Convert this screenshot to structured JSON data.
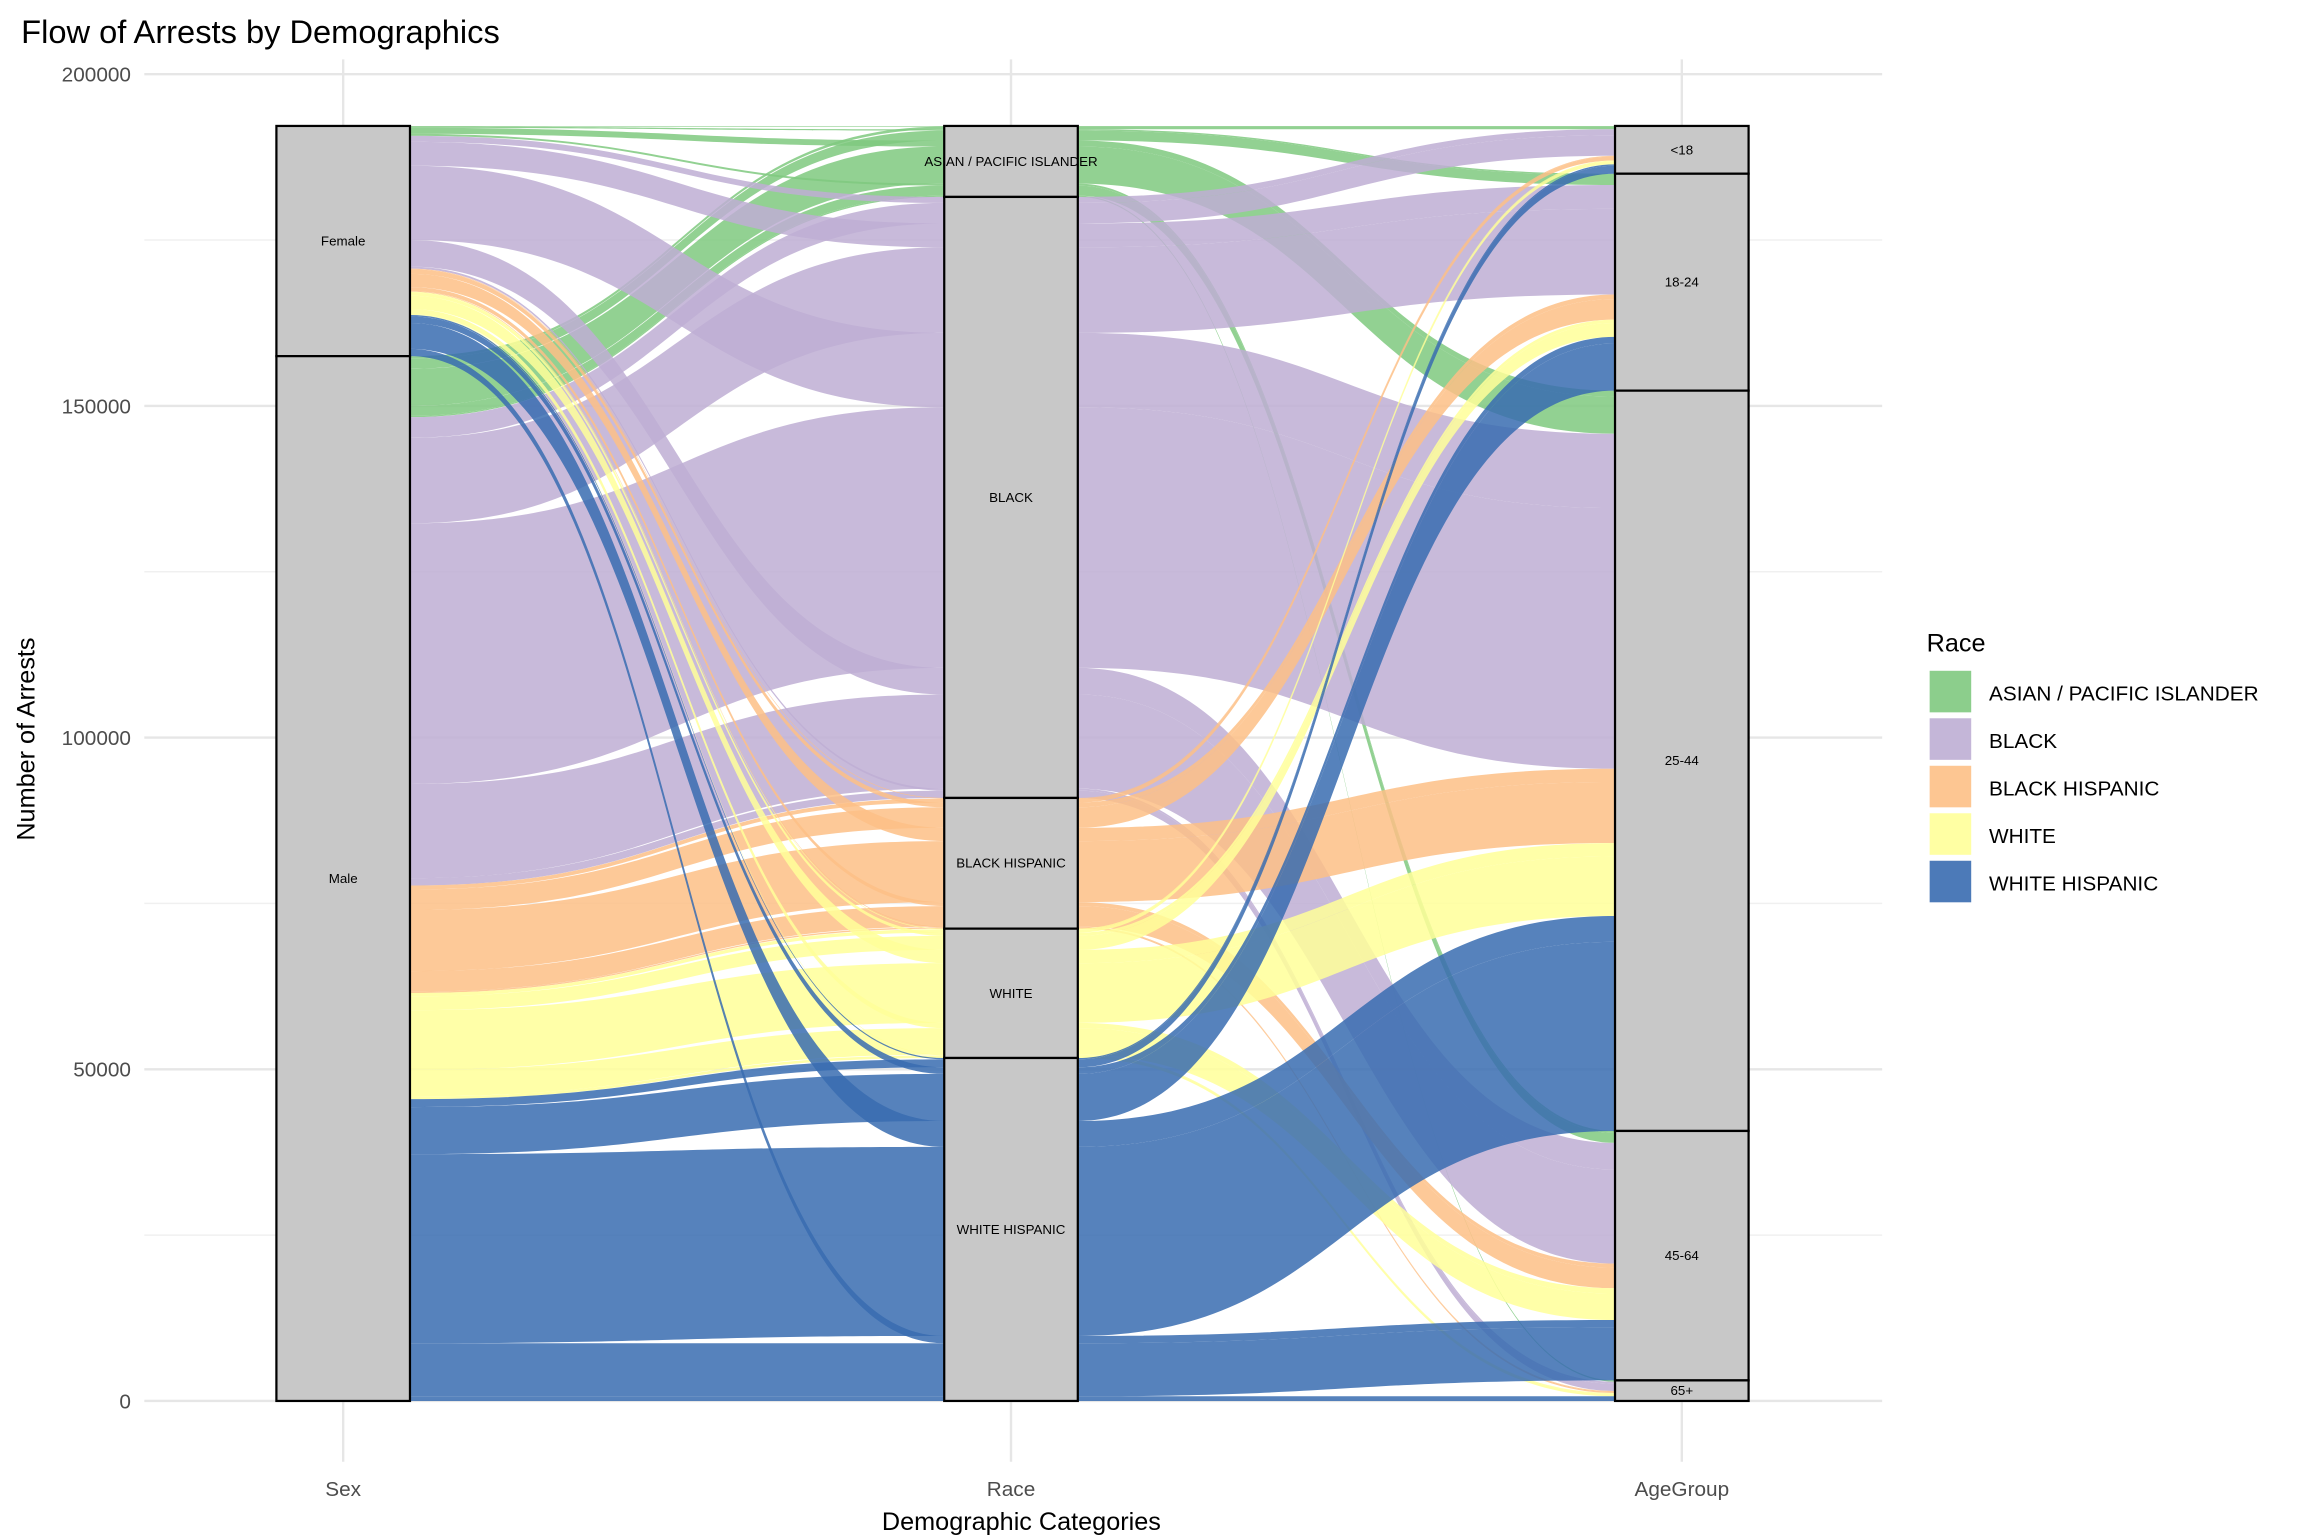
{
  "chart_data": {
    "type": "alluvial",
    "title": "Flow of Arrests by Demographics",
    "xlabel": "Demographic Categories",
    "ylabel": "Number of Arrests",
    "ylim": [
      0,
      200000
    ],
    "yticks": [
      0,
      50000,
      100000,
      150000,
      200000
    ],
    "grid": true,
    "axes": [
      "Sex",
      "Race",
      "AgeGroup"
    ],
    "strata": {
      "Sex": [
        "Female",
        "Male"
      ],
      "Race": [
        "ASIAN / PACIFIC ISLANDER",
        "BLACK",
        "BLACK HISPANIC",
        "WHITE",
        "WHITE HISPANIC"
      ],
      "AgeGroup": [
        "<18",
        "18-24",
        "25-44",
        "45-64",
        "65+"
      ]
    },
    "legend": {
      "title": "Race",
      "placement": "right",
      "entries": [
        "ASIAN / PACIFIC ISLANDER",
        "BLACK",
        "BLACK HISPANIC",
        "WHITE",
        "WHITE HISPANIC"
      ]
    },
    "colors": {
      "ASIAN / PACIFIC ISLANDER": "#7fc97f",
      "BLACK": "#beaed4",
      "BLACK HISPANIC": "#fdc086",
      "WHITE": "#ffff99",
      "WHITE HISPANIC": "#386cb0"
    },
    "flows": [
      [
        "Female",
        "ASIAN / PACIFIC ISLANDER",
        "<18",
        100
      ],
      [
        "Female",
        "ASIAN / PACIFIC ISLANDER",
        "18-24",
        200
      ],
      [
        "Female",
        "ASIAN / PACIFIC ISLANDER",
        "25-44",
        900
      ],
      [
        "Female",
        "ASIAN / PACIFIC ISLANDER",
        "45-64",
        300
      ],
      [
        "Female",
        "ASIAN / PACIFIC ISLANDER",
        "65+",
        0
      ],
      [
        "Male",
        "ASIAN / PACIFIC ISLANDER",
        "<18",
        400
      ],
      [
        "Male",
        "ASIAN / PACIFIC ISLANDER",
        "18-24",
        1500
      ],
      [
        "Male",
        "ASIAN / PACIFIC ISLANDER",
        "25-44",
        5600
      ],
      [
        "Male",
        "ASIAN / PACIFIC ISLANDER",
        "45-64",
        1500
      ],
      [
        "Male",
        "ASIAN / PACIFIC ISLANDER",
        "65+",
        200
      ],
      [
        "Female",
        "BLACK",
        "<18",
        900
      ],
      [
        "Female",
        "BLACK",
        "18-24",
        3600
      ],
      [
        "Female",
        "BLACK",
        "25-44",
        11200
      ],
      [
        "Female",
        "BLACK",
        "45-64",
        4000
      ],
      [
        "Female",
        "BLACK",
        "65+",
        300
      ],
      [
        "Male",
        "BLACK",
        "<18",
        3100
      ],
      [
        "Male",
        "BLACK",
        "18-24",
        12900
      ],
      [
        "Male",
        "BLACK",
        "25-44",
        39300
      ],
      [
        "Male",
        "BLACK",
        "45-64",
        14200
      ],
      [
        "Male",
        "BLACK",
        "65+",
        1100
      ],
      [
        "Female",
        "BLACK HISPANIC",
        "<18",
        100
      ],
      [
        "Female",
        "BLACK HISPANIC",
        "18-24",
        700
      ],
      [
        "Female",
        "BLACK HISPANIC",
        "25-44",
        2000
      ],
      [
        "Female",
        "BLACK HISPANIC",
        "45-64",
        600
      ],
      [
        "Female",
        "BLACK HISPANIC",
        "65+",
        100
      ],
      [
        "Male",
        "BLACK HISPANIC",
        "<18",
        600
      ],
      [
        "Male",
        "BLACK HISPANIC",
        "18-24",
        3100
      ],
      [
        "Male",
        "BLACK HISPANIC",
        "25-44",
        9200
      ],
      [
        "Male",
        "BLACK HISPANIC",
        "45-64",
        3100
      ],
      [
        "Male",
        "BLACK HISPANIC",
        "65+",
        200
      ],
      [
        "Female",
        "WHITE",
        "<18",
        100
      ],
      [
        "Female",
        "WHITE",
        "18-24",
        500
      ],
      [
        "Female",
        "WHITE",
        "25-44",
        2000
      ],
      [
        "Female",
        "WHITE",
        "45-64",
        800
      ],
      [
        "Female",
        "WHITE",
        "65+",
        100
      ],
      [
        "Male",
        "WHITE",
        "<18",
        500
      ],
      [
        "Male",
        "WHITE",
        "18-24",
        2100
      ],
      [
        "Male",
        "WHITE",
        "25-44",
        9000
      ],
      [
        "Male",
        "WHITE",
        "45-64",
        4000
      ],
      [
        "Male",
        "WHITE",
        "65+",
        400
      ],
      [
        "Female",
        "WHITE HISPANIC",
        "<18",
        200
      ],
      [
        "Female",
        "WHITE HISPANIC",
        "18-24",
        1000
      ],
      [
        "Female",
        "WHITE HISPANIC",
        "25-44",
        3900
      ],
      [
        "Female",
        "WHITE HISPANIC",
        "45-64",
        1100
      ],
      [
        "Female",
        "WHITE HISPANIC",
        "65+",
        0
      ],
      [
        "Male",
        "WHITE HISPANIC",
        "<18",
        1200
      ],
      [
        "Male",
        "WHITE HISPANIC",
        "18-24",
        7100
      ],
      [
        "Male",
        "WHITE HISPANIC",
        "25-44",
        28500
      ],
      [
        "Male",
        "WHITE HISPANIC",
        "45-64",
        8000
      ],
      [
        "Male",
        "WHITE HISPANIC",
        "65+",
        700
      ]
    ]
  }
}
